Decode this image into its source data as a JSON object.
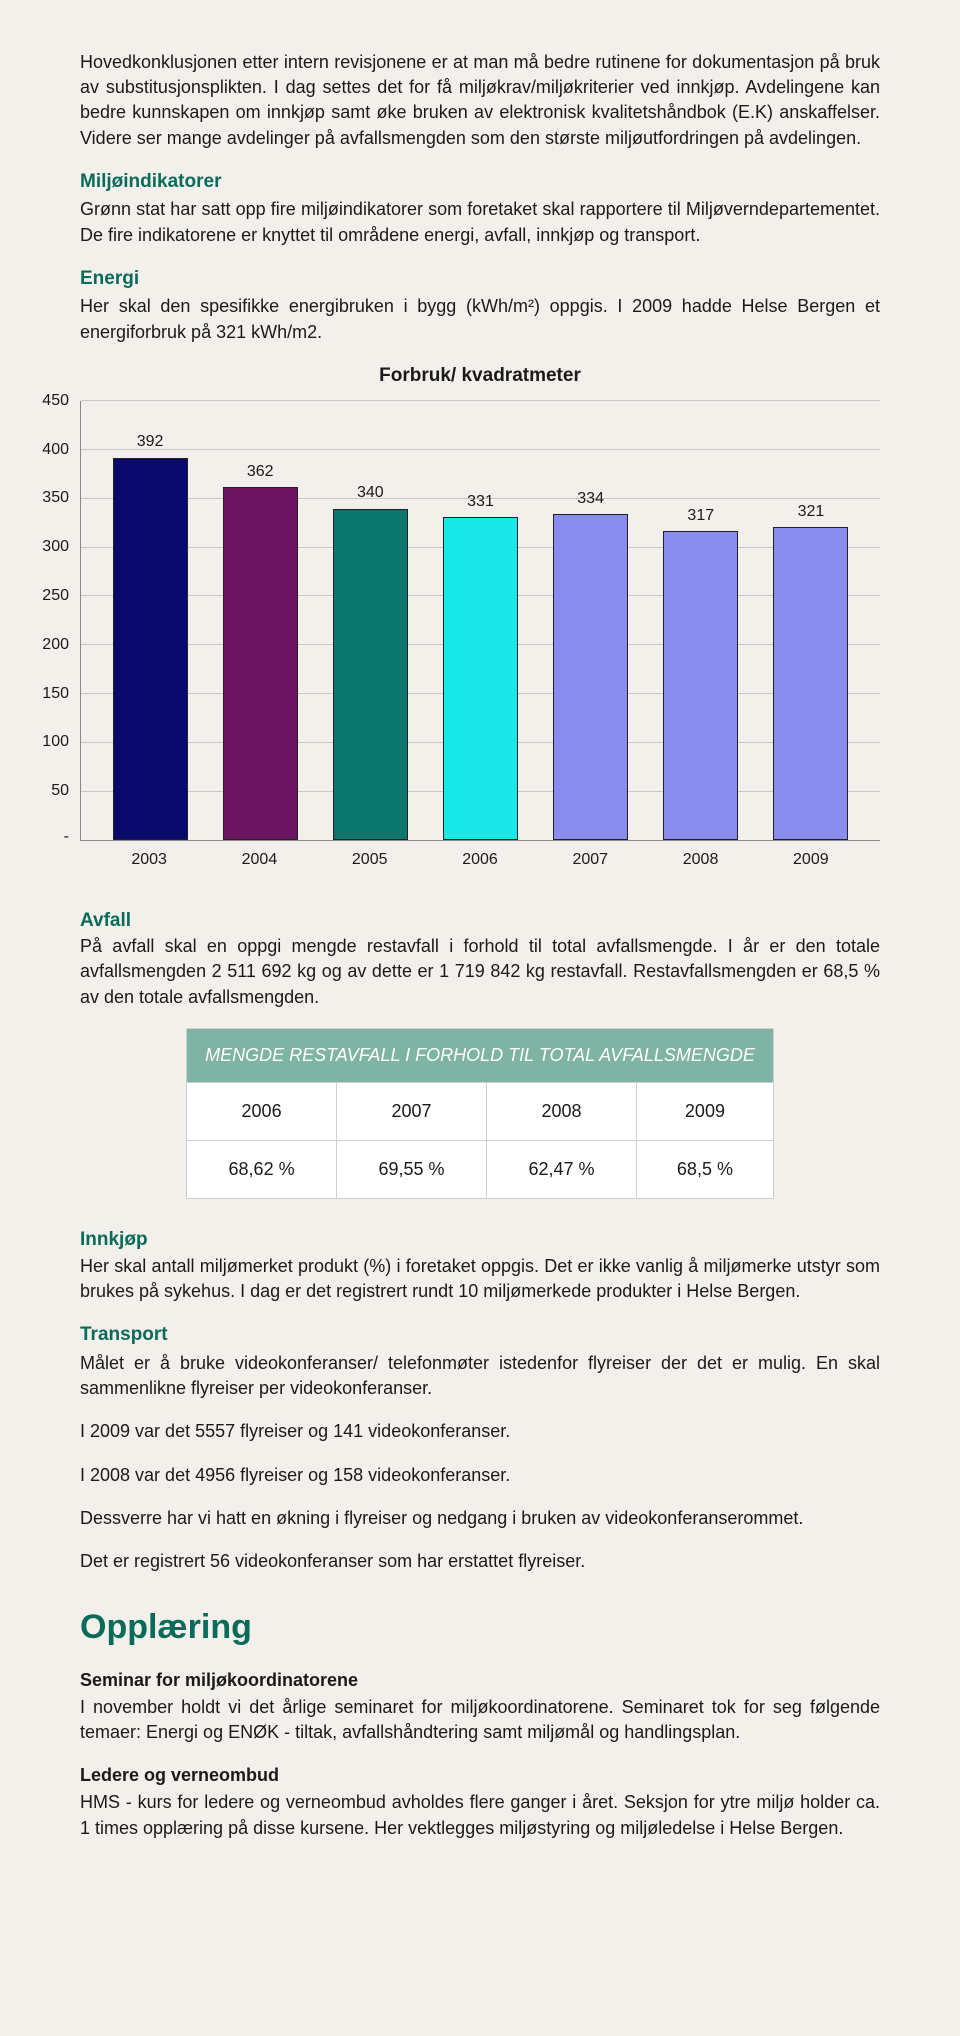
{
  "intro": {
    "p1": "Hovedkonklusjonen etter intern revisjonene er at man må bedre rutinene for dokumentasjon på bruk av substitusjonsplikten. I dag settes det for få miljøkrav/miljøkriterier ved innkjøp. Avdelingene kan bedre kunnskapen om innkjøp samt øke bruken av elektronisk kvalitetshåndbok (E.K) anskaffelser. Videre ser mange avdelinger på avfallsmengden som den største miljøutfordringen på avdelingen."
  },
  "miljo": {
    "heading": "Miljøindikatorer",
    "p": "Grønn stat har satt opp fire miljøindikatorer som foretaket skal rapportere til Miljøverndepartementet. De fire indikatorene er knyttet til områdene energi, avfall, innkjøp og transport."
  },
  "energi": {
    "heading": "Energi",
    "p": "Her skal den spesifikke energibruken i bygg (kWh/m²) oppgis. I 2009 hadde Helse Bergen et energiforbruk på 321 kWh/m2."
  },
  "chart": {
    "title": "Forbruk/ kvadratmeter",
    "ymax": 450,
    "ytick_step": 50,
    "yticks": [
      "450",
      "400",
      "350",
      "300",
      "250",
      "200",
      "150",
      "100",
      "50",
      "-"
    ],
    "grid_color": "#c8c8c8",
    "axis_color": "#888888",
    "categories": [
      "2003",
      "2004",
      "2005",
      "2006",
      "2007",
      "2008",
      "2009"
    ],
    "values": [
      392,
      362,
      340,
      331,
      334,
      317,
      321
    ],
    "bar_colors": [
      "#0a0a6e",
      "#6b1460",
      "#0a766e",
      "#19e8e8",
      "#8a8df0",
      "#8a8df0",
      "#8a8df0"
    ]
  },
  "avfall": {
    "heading": "Avfall",
    "p": "På avfall skal en oppgi mengde restavfall i forhold til total avfallsmengde. I år er den totale avfallsmengden 2 511 692 kg og av dette er 1 719 842 kg restavfall. Restavfallsmengden er 68,5 % av den totale avfallsmengden."
  },
  "waste_table": {
    "header": "MENGDE RESTAVFALL I FORHOLD TIL TOTAL AVFALLSMENGDE",
    "header_bg": "#7fb3a4",
    "years": [
      "2006",
      "2007",
      "2008",
      "2009"
    ],
    "values": [
      "68,62 %",
      "69,55 %",
      "62,47 %",
      "68,5 %"
    ]
  },
  "innkjop": {
    "heading": "Innkjøp",
    "p": "Her skal antall miljømerket produkt (%) i foretaket oppgis. Det er ikke vanlig å miljømerke utstyr som brukes på sykehus. I dag er det registrert rundt 10 miljømerkede produkter i Helse Bergen."
  },
  "transport": {
    "heading": "Transport",
    "p1": "Målet er å bruke videokonferanser/ telefonmøter istedenfor flyreiser der det er mulig. En skal sammenlikne flyreiser per videokonferanser.",
    "p2": "I 2009 var det 5557 flyreiser og 141 videokonferanser.",
    "p3": "I 2008 var det 4956 flyreiser og 158 videokonferanser.",
    "p4": "Dessverre har vi hatt en økning i flyreiser og nedgang i bruken av videokonferanserommet.",
    "p5": "Det er registrert 56 videokonferanser som har erstattet flyreiser."
  },
  "opplaring": {
    "heading": "Opplæring",
    "seminar_h": "Seminar for miljøkoordinatorene",
    "seminar_p": "I november holdt vi det årlige seminaret for miljøkoordinatorene. Seminaret tok for seg følgende temaer: Energi og ENØK - tiltak, avfallshåndtering samt miljømål og handlingsplan.",
    "ledere_h": "Ledere og verneombud",
    "ledere_p": "HMS - kurs for ledere og verneombud avholdes flere ganger i året. Seksjon for ytre miljø holder ca. 1 times opplæring på disse kursene. Her vektlegges miljøstyring og miljøledelse i Helse Bergen."
  }
}
